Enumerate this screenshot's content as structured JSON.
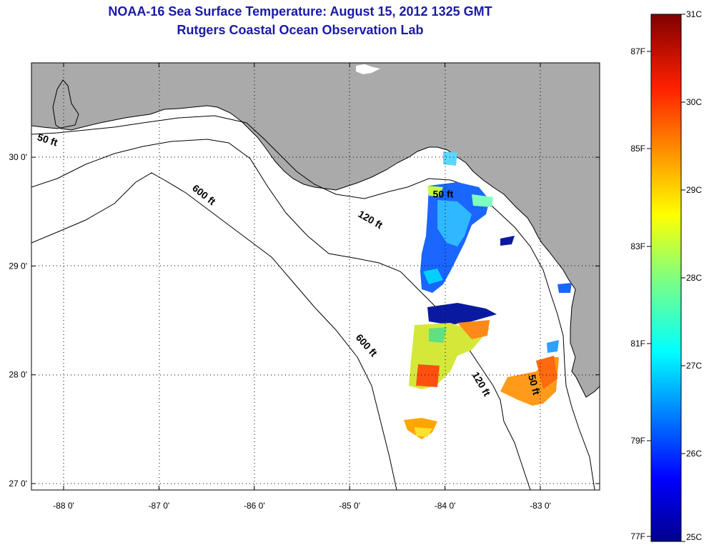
{
  "title": {
    "line1": "NOAA-16 Sea Surface Temperature:  August 15, 2012 1325 GMT",
    "line2": "Rutgers Coastal Ocean Observation Lab"
  },
  "map": {
    "lon_ticks": [
      {
        "value": -88,
        "label": "-88 0'"
      },
      {
        "value": -87,
        "label": "-87 0'"
      },
      {
        "value": -86,
        "label": "-86 0'"
      },
      {
        "value": -85,
        "label": "-85 0'"
      },
      {
        "value": -84,
        "label": "-84 0'"
      },
      {
        "value": -83,
        "label": "-83 0'"
      }
    ],
    "lat_ticks": [
      {
        "value": 30,
        "label": "30 0'"
      },
      {
        "value": 29,
        "label": "29 0'"
      },
      {
        "value": 28,
        "label": "28 0'"
      },
      {
        "value": 27,
        "label": "27 0'"
      }
    ],
    "contour_labels": [
      {
        "text": "50 ft",
        "lon": -88.18,
        "lat": 30.13
      },
      {
        "text": "50 ft",
        "lon": -84.02,
        "lat": 29.63
      },
      {
        "text": "50 ft",
        "lon": -83.1,
        "lat": 27.9
      },
      {
        "text": "120 ft",
        "lon": -84.8,
        "lat": 29.4
      },
      {
        "text": "120 ft",
        "lon": -83.65,
        "lat": 27.9
      },
      {
        "text": "600 ft",
        "lon": -86.55,
        "lat": 29.63
      },
      {
        "text": "600 ft",
        "lon": -84.85,
        "lat": 28.25
      }
    ]
  },
  "colorbar": {
    "celsius_labels": [
      "31C",
      "30C",
      "29C",
      "28C",
      "27C",
      "26C",
      "25C"
    ],
    "fahrenheit_labels": [
      "87F",
      "85F",
      "83F",
      "81F",
      "79F",
      "77F"
    ]
  },
  "colors": {
    "land": "#aaaaaa",
    "ocean": "#ffffff",
    "title": "#1a1aa8"
  }
}
